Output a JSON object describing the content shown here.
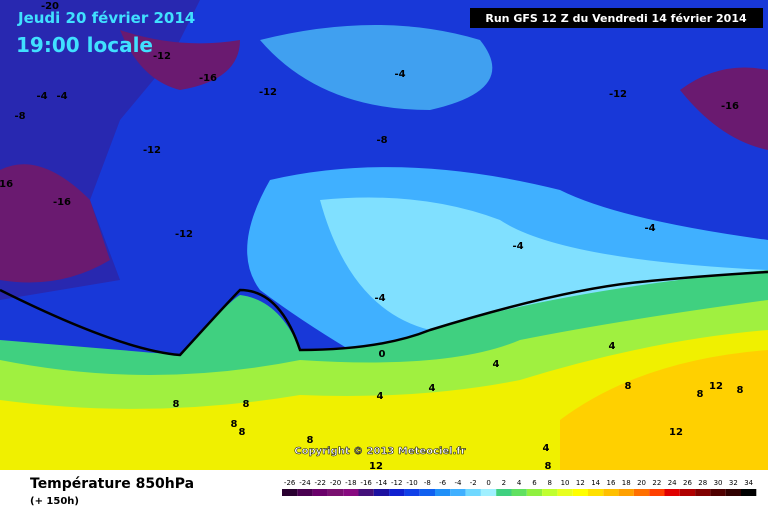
{
  "header": {
    "date": "Jeudi 20 février 2014",
    "time": "19:00 locale",
    "run": "Run GFS 12 Z du Vendredi 14 février 2014"
  },
  "footer": {
    "title": "Température 850hPa",
    "subtitle": "(+ 150h)",
    "copyright": "Copyright © 2013 Meteociel.fr"
  },
  "map": {
    "labels": [
      "-20",
      "-12",
      "-16",
      "-12",
      "-4",
      "-4",
      "-8",
      "-16",
      "-12",
      "-16",
      "-12",
      "-4",
      "-8",
      "-12",
      "-16",
      "-4",
      "-4",
      "-4",
      "0",
      "4",
      "4",
      "4",
      "4",
      "8",
      "8",
      "8",
      "8",
      "8",
      "4",
      "8",
      "8",
      "12",
      "8",
      "12",
      "12",
      "8"
    ]
  },
  "scale": {
    "values": [
      -26,
      -24,
      -22,
      -20,
      -18,
      -16,
      -14,
      -12,
      -10,
      -8,
      -6,
      -4,
      -2,
      0,
      2,
      4,
      6,
      8,
      10,
      12,
      14,
      16,
      18,
      20,
      22,
      24,
      26,
      28,
      30,
      32,
      34
    ],
    "colors": [
      "#2a0030",
      "#4a0050",
      "#6a006a",
      "#7a1070",
      "#880a80",
      "#44107a",
      "#1c10a0",
      "#1020d0",
      "#1040e8",
      "#1060f0",
      "#2090f8",
      "#40b0ff",
      "#70d8ff",
      "#a0f0ff",
      "#40d080",
      "#60e060",
      "#90f040",
      "#c0ff30",
      "#e8ff20",
      "#ffff00",
      "#ffe000",
      "#ffc000",
      "#ffa000",
      "#ff7000",
      "#ff4000",
      "#e00000",
      "#b00000",
      "#800000",
      "#500000",
      "#300000",
      "#000000"
    ]
  }
}
